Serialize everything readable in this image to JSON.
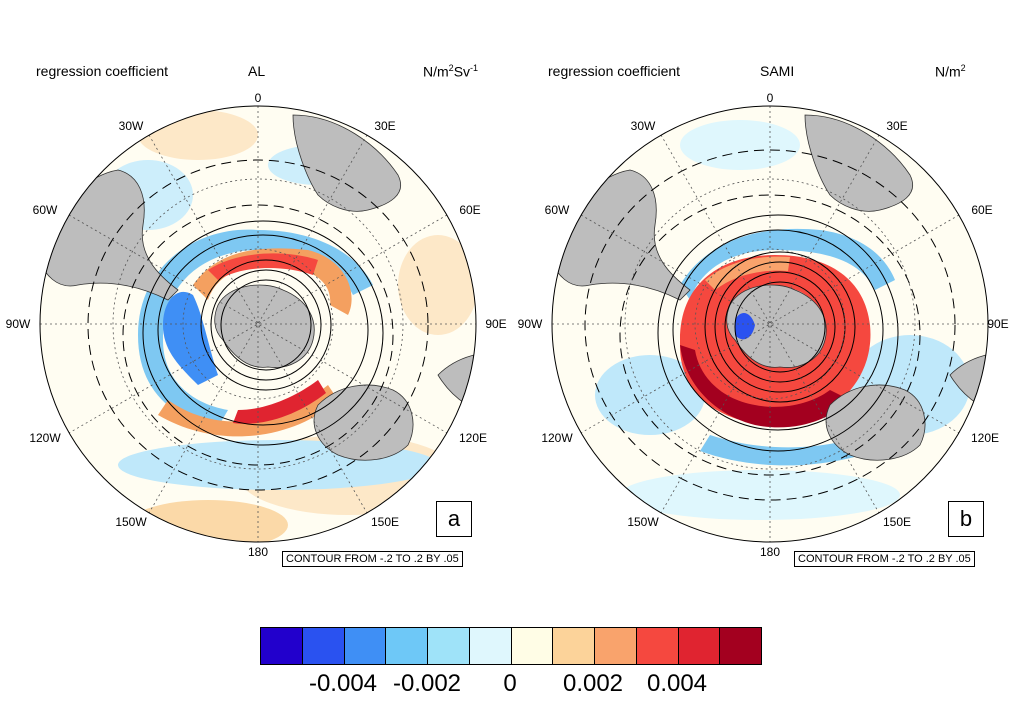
{
  "panels": [
    {
      "id": "a",
      "left_title": "regression coefficient",
      "center_title": "AL",
      "right_title_main": "N/m",
      "right_title_sup1": "2",
      "right_title_mid": "Sv",
      "right_title_sup2": "-1",
      "letter": "a",
      "contour_note": "CONTOUR FROM -.2 TO .2 BY .05"
    },
    {
      "id": "b",
      "left_title": "regression coefficient",
      "center_title": "SAMI",
      "right_title_main": "N/m",
      "right_title_sup1": "2",
      "right_title_mid": "",
      "right_title_sup2": "",
      "letter": "b",
      "contour_note": "CONTOUR FROM -.2 TO .2 BY .05"
    }
  ],
  "longitude_labels": {
    "top": "0",
    "bottom": "180",
    "l30w": "30W",
    "l30e": "30E",
    "l60w": "60W",
    "l60e": "60E",
    "l90w": "90W",
    "l90e": "90E",
    "l120w": "120W",
    "l120e": "120E",
    "l150w": "150W",
    "l150e": "150E"
  },
  "colorbar": {
    "colors": [
      "#2200cc",
      "#2a52f0",
      "#3f8ff5",
      "#6ec8f7",
      "#9fe3f9",
      "#dff7fd",
      "#fffde6",
      "#fcd39a",
      "#f9a36c",
      "#f5483f",
      "#e02430",
      "#a3001f"
    ],
    "ticks": [
      "-0.004",
      "-0.002",
      "0",
      "0.002",
      "0.004"
    ]
  },
  "colors": {
    "land": "#bdbdbd",
    "neg": "#7ec8f2",
    "pos": "#f4a060",
    "strong_pos": "#d62028"
  }
}
